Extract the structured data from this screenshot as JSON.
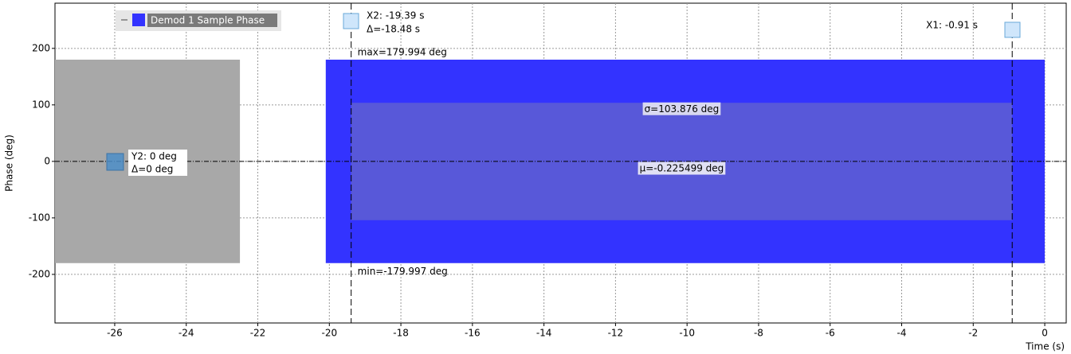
{
  "chart_data": {
    "type": "band",
    "x_label": "Time (s)",
    "y_label": "Phase (deg)",
    "xlim": [
      -27.67,
      0.6
    ],
    "ylim": [
      -286,
      280
    ],
    "xticks": [
      -26,
      -24,
      -22,
      -20,
      -18,
      -16,
      -14,
      -12,
      -10,
      -8,
      -6,
      -4,
      -2,
      0
    ],
    "yticks": [
      -200,
      -100,
      0,
      100,
      200
    ],
    "grid": true,
    "history": {
      "color": "#a8a8a8",
      "x": [
        -27.67,
        -22.5
      ],
      "upper": [
        180,
        180
      ],
      "lower": [
        -180,
        -180
      ]
    },
    "series": [
      {
        "name": "Demod 1 Sample Phase",
        "color": "#3333ff",
        "x": [
          -20.1,
          0
        ],
        "upper": [
          179.994,
          179.994
        ],
        "lower": [
          -179.997,
          -179.997
        ]
      }
    ],
    "stats": {
      "max": 179.994,
      "max_label": "max=179.994 deg",
      "min": -179.997,
      "min_label": "min=-179.997 deg",
      "mean": -0.225499,
      "mean_label": "μ=-0.225499 deg",
      "sigma": 103.876,
      "sigma_label": "σ=103.876 deg"
    },
    "cursors": {
      "x1": {
        "value": -0.91,
        "label": "X1: -0.91 s"
      },
      "x2": {
        "value": -19.39,
        "label": "X2: -19.39 s"
      },
      "x_delta": {
        "value": -18.48,
        "label": "Δ=-18.48 s"
      },
      "y2": {
        "value": 0,
        "label": "Y2: 0 deg"
      },
      "y_delta": {
        "value": 0,
        "label": "Δ=0 deg"
      }
    }
  }
}
